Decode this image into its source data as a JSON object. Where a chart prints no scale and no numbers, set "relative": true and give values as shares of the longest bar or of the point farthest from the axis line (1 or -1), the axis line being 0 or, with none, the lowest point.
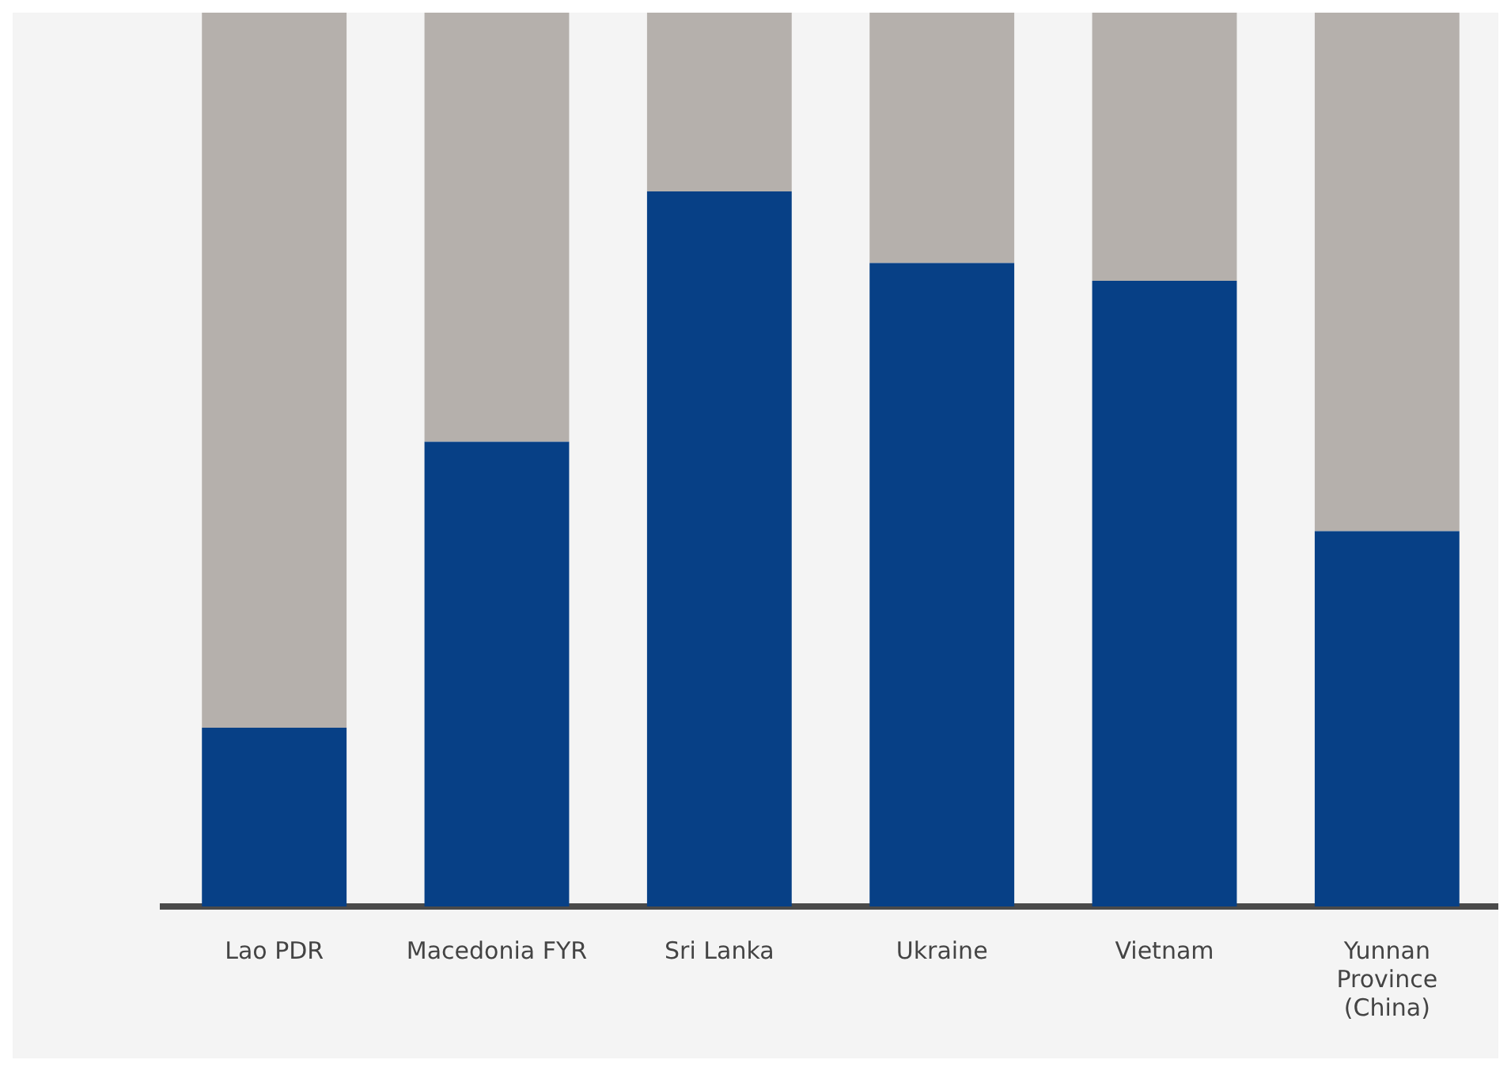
{
  "chart_data": {
    "type": "bar",
    "stacked": true,
    "relative": true,
    "categories": [
      "Lao PDR",
      "Macedonia FYR",
      "Sri Lanka",
      "Ukraine",
      "Vietnam",
      "Yunnan Province (China)"
    ],
    "series": [
      {
        "color": "#074086",
        "values": [
          0.2,
          0.52,
          0.8,
          0.72,
          0.7,
          0.42
        ]
      },
      {
        "color": "#b5b0ac",
        "values": [
          0.8,
          0.48,
          0.2,
          0.28,
          0.3,
          0.58
        ]
      }
    ]
  }
}
